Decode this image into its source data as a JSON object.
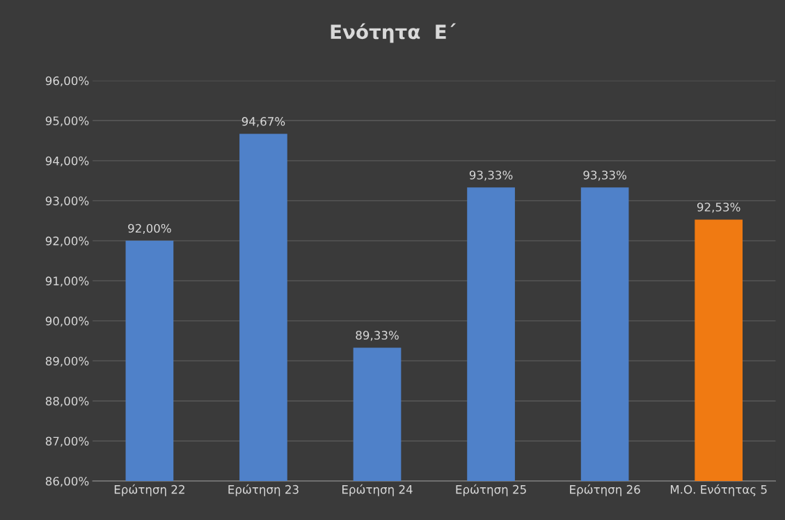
{
  "chart_data": {
    "type": "bar",
    "title": "Ενότητα  Ε΄",
    "categories": [
      "Ερώτηση 22",
      "Ερώτηση 23",
      "Ερώτηση 24",
      "Ερώτηση 25",
      "Ερώτηση 26",
      "Μ.Ο. Ενότητας 5"
    ],
    "values": [
      92.0,
      94.67,
      89.33,
      93.33,
      93.33,
      92.53
    ],
    "colors": [
      "#4f81c9",
      "#4f81c9",
      "#4f81c9",
      "#4f81c9",
      "#4f81c9",
      "#f07a12"
    ],
    "value_labels": [
      "92,00%",
      "94,67%",
      "89,33%",
      "93,33%",
      "93,33%",
      "92,53%"
    ],
    "ylim": [
      86,
      96
    ],
    "yticks": [
      {
        "value": 86,
        "label": "86,00%"
      },
      {
        "value": 87,
        "label": "87,00%"
      },
      {
        "value": 88,
        "label": "88,00%"
      },
      {
        "value": 89,
        "label": "89,00%"
      },
      {
        "value": 90,
        "label": "90,00%"
      },
      {
        "value": 91,
        "label": "91,00%"
      },
      {
        "value": 92,
        "label": "92,00%"
      },
      {
        "value": 93,
        "label": "93,00%"
      },
      {
        "value": 94,
        "label": "94,00%"
      },
      {
        "value": 95,
        "label": "95,00%"
      },
      {
        "value": 96,
        "label": "96,00%"
      }
    ],
    "grid": "y"
  }
}
